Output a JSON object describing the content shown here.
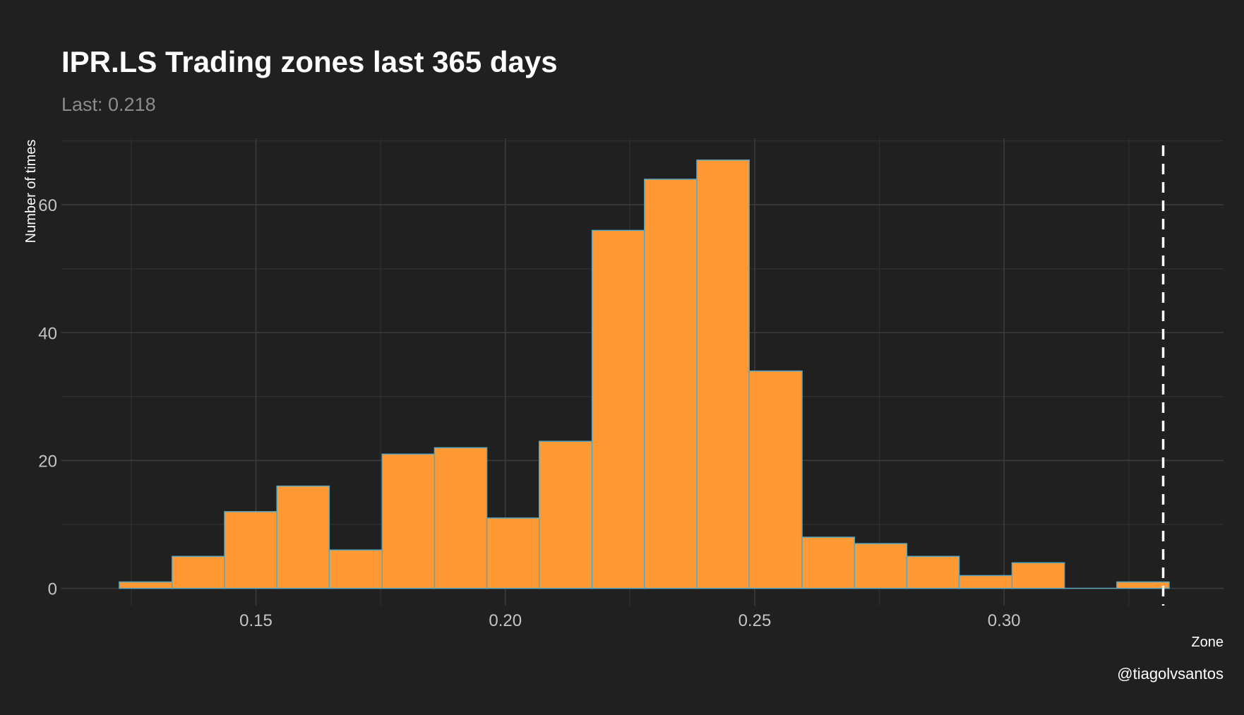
{
  "chart_data": {
    "type": "bar",
    "title": "IPR.LS Trading zones last 365 days",
    "subtitle": "Last: 0.218",
    "xlabel": "Zone",
    "ylabel": "Number of times",
    "caption": "@tiagolvsantos",
    "bins": [
      {
        "x0": 0.1226,
        "x1": 0.1332,
        "count": 1
      },
      {
        "x0": 0.1332,
        "x1": 0.1437,
        "count": 5
      },
      {
        "x0": 0.1437,
        "x1": 0.1542,
        "count": 12
      },
      {
        "x0": 0.1542,
        "x1": 0.1647,
        "count": 16
      },
      {
        "x0": 0.1647,
        "x1": 0.1753,
        "count": 6
      },
      {
        "x0": 0.1753,
        "x1": 0.1858,
        "count": 21
      },
      {
        "x0": 0.1858,
        "x1": 0.1963,
        "count": 22
      },
      {
        "x0": 0.1963,
        "x1": 0.2068,
        "count": 11
      },
      {
        "x0": 0.2068,
        "x1": 0.2174,
        "count": 23
      },
      {
        "x0": 0.2174,
        "x1": 0.2279,
        "count": 56
      },
      {
        "x0": 0.2279,
        "x1": 0.2384,
        "count": 64
      },
      {
        "x0": 0.2384,
        "x1": 0.2489,
        "count": 67
      },
      {
        "x0": 0.2489,
        "x1": 0.2595,
        "count": 34
      },
      {
        "x0": 0.2595,
        "x1": 0.27,
        "count": 8
      },
      {
        "x0": 0.27,
        "x1": 0.2805,
        "count": 7
      },
      {
        "x0": 0.2805,
        "x1": 0.291,
        "count": 5
      },
      {
        "x0": 0.291,
        "x1": 0.3016,
        "count": 2
      },
      {
        "x0": 0.3016,
        "x1": 0.3121,
        "count": 4
      },
      {
        "x0": 0.3121,
        "x1": 0.3226,
        "count": 0
      },
      {
        "x0": 0.3226,
        "x1": 0.3331,
        "count": 1
      }
    ],
    "vline": {
      "x": 0.3319,
      "style": "dashed",
      "color": "#ffffff"
    },
    "xlim": [
      0.111,
      0.344
    ],
    "ylim": [
      -2.7,
      70.4
    ],
    "x_ticks": [
      {
        "value": 0.15,
        "label": "0.15"
      },
      {
        "value": 0.2,
        "label": "0.20"
      },
      {
        "value": 0.25,
        "label": "0.25"
      },
      {
        "value": 0.3,
        "label": "0.30"
      }
    ],
    "x_minor_ticks": [
      0.125,
      0.175,
      0.225,
      0.275,
      0.325
    ],
    "y_ticks": [
      {
        "value": 0,
        "label": "0"
      },
      {
        "value": 20,
        "label": "20"
      },
      {
        "value": 40,
        "label": "40"
      },
      {
        "value": 60,
        "label": "60"
      }
    ],
    "y_minor_ticks": [
      10,
      30,
      50,
      70
    ],
    "grid": true,
    "colors": {
      "background": "#202020",
      "bar_fill": "#ff9933",
      "bar_outline": "#5aa7bf",
      "grid_major": "#3a3a3a",
      "grid_minor": "#2e2e2e"
    }
  }
}
